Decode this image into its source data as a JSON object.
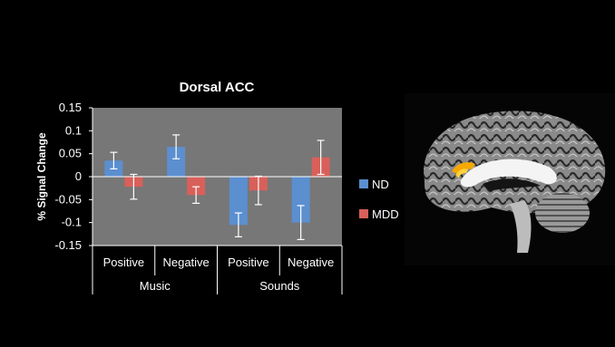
{
  "chart_data": {
    "type": "bar",
    "title": "Dorsal ACC",
    "ylabel": "% Signal Change",
    "xlabel": "",
    "ylim": [
      -0.15,
      0.15
    ],
    "yticks": [
      "0.15",
      "0.1",
      "0.05",
      "0",
      "-0.05",
      "-0.1",
      "-0.15"
    ],
    "ytick_values": [
      0.15,
      0.1,
      0.05,
      0,
      -0.05,
      -0.1,
      -0.15
    ],
    "categories": [
      "Positive",
      "Negative",
      "Positive",
      "Negative"
    ],
    "groups": [
      "Music",
      "Sounds"
    ],
    "series": [
      {
        "name": "ND",
        "color": "#5b8fd0",
        "values": [
          0.035,
          0.065,
          -0.105,
          -0.1
        ],
        "errors": [
          0.018,
          0.026,
          0.026,
          0.037
        ]
      },
      {
        "name": "MDD",
        "color": "#d9605a",
        "values": [
          -0.022,
          -0.04,
          -0.03,
          0.042
        ],
        "errors": [
          0.027,
          0.018,
          0.031,
          0.037
        ]
      }
    ],
    "grid": false,
    "legend": "right"
  },
  "image": {
    "icon": "brain-mri-sagittal-icon",
    "highlight_color": "#f5a800"
  }
}
